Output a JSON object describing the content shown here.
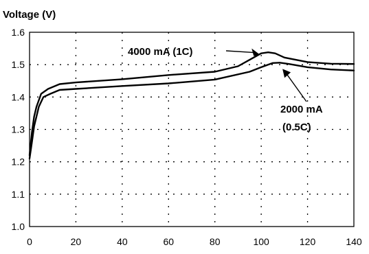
{
  "chart_data": {
    "type": "line",
    "title": "",
    "ylabel": "Voltage (V)",
    "xlabel": "",
    "xlim": [
      0,
      140
    ],
    "ylim": [
      1.0,
      1.6
    ],
    "xticks": [
      0,
      20,
      40,
      60,
      80,
      100,
      120,
      140
    ],
    "yticks": [
      1.0,
      1.1,
      1.2,
      1.3,
      1.4,
      1.5,
      1.6
    ],
    "ytick_labels": [
      "1.0",
      "1.1",
      "1.2",
      "1.3",
      "1.4",
      "1.5",
      "1.6"
    ],
    "grid": true,
    "series": [
      {
        "name": "4000 mA (1C)",
        "x": [
          0,
          1,
          2,
          3,
          5,
          8,
          13,
          20,
          40,
          60,
          80,
          90,
          95,
          100,
          103,
          106,
          110,
          120,
          130,
          140
        ],
        "y": [
          1.22,
          1.29,
          1.34,
          1.37,
          1.41,
          1.425,
          1.44,
          1.445,
          1.455,
          1.468,
          1.478,
          1.495,
          1.515,
          1.535,
          1.538,
          1.535,
          1.522,
          1.508,
          1.503,
          1.502
        ]
      },
      {
        "name": "2000 mA (0.5C)",
        "x": [
          0,
          1,
          2,
          4,
          6,
          9,
          13,
          20,
          40,
          60,
          80,
          95,
          100,
          105,
          108,
          112,
          120,
          130,
          140
        ],
        "y": [
          1.21,
          1.26,
          1.31,
          1.37,
          1.4,
          1.41,
          1.422,
          1.425,
          1.434,
          1.442,
          1.454,
          1.478,
          1.492,
          1.505,
          1.506,
          1.502,
          1.492,
          1.485,
          1.482
        ]
      }
    ],
    "annotations": [
      {
        "line1": "4000 mA (1C)",
        "line2": "",
        "points_to_x": 103,
        "points_to_y": 1.535
      },
      {
        "line1": "2000 mA",
        "line2": "(0.5C)",
        "points_to_x": 108,
        "points_to_y": 1.506
      }
    ]
  }
}
